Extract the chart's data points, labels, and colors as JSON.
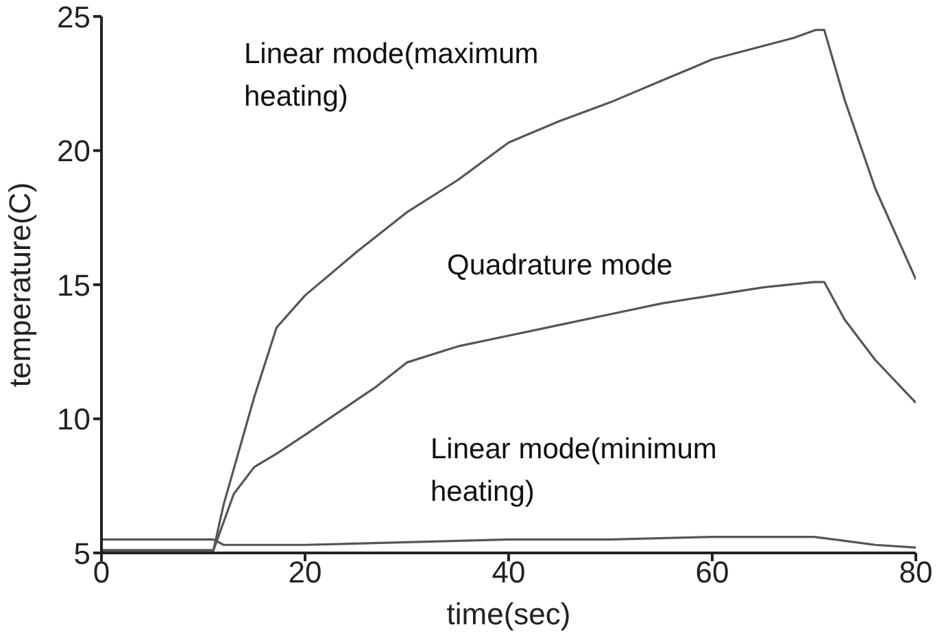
{
  "chart_data": {
    "type": "line",
    "xlabel": "time(sec)",
    "ylabel": "temperature(C)",
    "xlim": [
      0,
      80
    ],
    "xticks": [
      0,
      20,
      40,
      60,
      80
    ],
    "ylim": [
      5,
      25
    ],
    "yticks": [
      5,
      10,
      15,
      20,
      25
    ],
    "marker": "none",
    "line_style": "solid",
    "series": [
      {
        "name": "Linear mode(maximum heating)",
        "color": "#555555",
        "x": [
          0,
          5,
          11,
          12,
          13.8,
          15,
          17.2,
          20,
          25,
          30,
          35,
          40,
          45,
          50,
          55,
          60,
          65,
          68,
          70.2,
          71,
          73,
          76,
          80
        ],
        "values": [
          5.1,
          5.1,
          5.1,
          6.8,
          9.2,
          10.8,
          13.4,
          14.6,
          16.2,
          17.7,
          18.9,
          20.3,
          21.1,
          21.8,
          22.6,
          23.4,
          23.9,
          24.2,
          24.5,
          24.5,
          21.9,
          18.6,
          15.2
        ]
      },
      {
        "name": "Quadrature mode",
        "color": "#555555",
        "x": [
          0,
          5,
          11,
          13,
          15,
          17.2,
          20,
          27,
          30,
          35,
          40,
          45,
          50,
          55,
          60,
          65,
          70,
          71,
          73,
          76,
          80
        ],
        "values": [
          5.1,
          5.1,
          5.1,
          7.2,
          8.2,
          8.7,
          9.4,
          11.2,
          12.1,
          12.7,
          13.1,
          13.5,
          13.9,
          14.3,
          14.6,
          14.9,
          15.1,
          15.1,
          13.7,
          12.2,
          10.6
        ]
      },
      {
        "name": "Linear mode(minimum heating)",
        "color": "#555555",
        "x": [
          0,
          5,
          11,
          12,
          20,
          30,
          40,
          50,
          60,
          65,
          70,
          72,
          76,
          80
        ],
        "values": [
          5.5,
          5.5,
          5.5,
          5.3,
          5.3,
          5.4,
          5.5,
          5.5,
          5.6,
          5.6,
          5.6,
          5.5,
          5.3,
          5.2
        ]
      }
    ]
  }
}
